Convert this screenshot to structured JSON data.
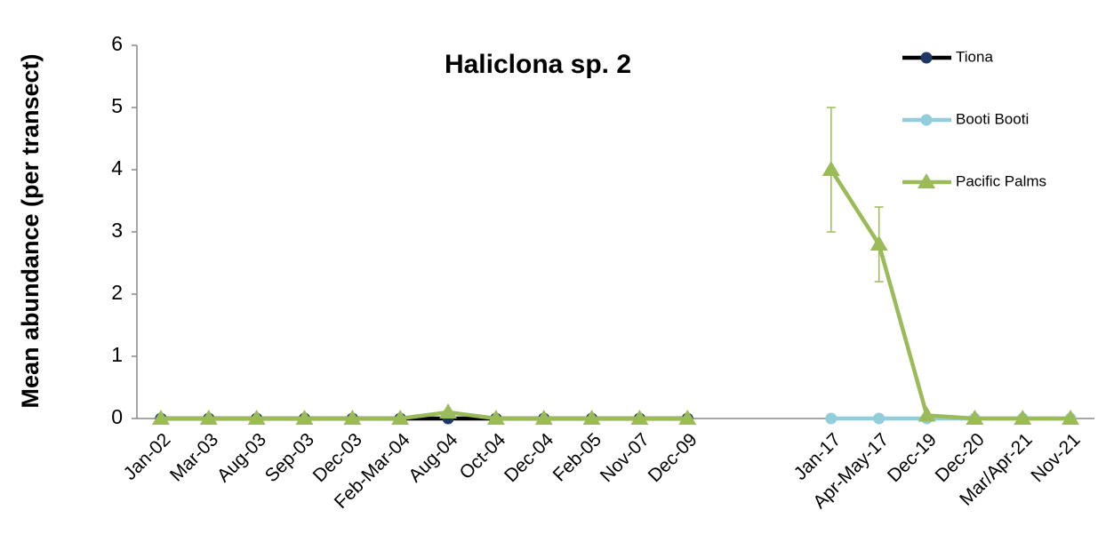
{
  "chart_data": {
    "type": "line",
    "title": "Haliclona sp. 2",
    "y_label": "Mean abundance (per transect)",
    "categories": [
      "Jan-02",
      "Mar-03",
      "Aug-03",
      "Sep-03",
      "Dec-03",
      "Feb-Mar-04",
      "Aug-04",
      "Oct-04",
      "Dec-04",
      "Feb-05",
      "Nov-07",
      "Dec-09",
      null,
      null,
      "Jan-17",
      "Apr-May-17",
      "Dec-19",
      "Dec-20",
      "Mar/Apr-21",
      "Nov-21"
    ],
    "series": [
      {
        "name": "Tiona",
        "color": "#000000",
        "marker_color": "#1f3864",
        "marker": "circle",
        "values": [
          0,
          0,
          0,
          0,
          0,
          0,
          0,
          0,
          0,
          0,
          0,
          0,
          null,
          null,
          null,
          null,
          null,
          null,
          null,
          null
        ]
      },
      {
        "name": "Booti Booti",
        "color": "#92cddc",
        "marker_color": "#92cddc",
        "marker": "circle",
        "values": [
          null,
          null,
          null,
          null,
          null,
          null,
          null,
          null,
          null,
          null,
          null,
          null,
          null,
          null,
          0,
          0,
          0,
          0,
          0,
          0
        ]
      },
      {
        "name": "Pacific Palms",
        "color": "#9bbb59",
        "marker_color": "#9bbb59",
        "marker": "triangle",
        "values": [
          0,
          0,
          0,
          0,
          0,
          0,
          0.1,
          0,
          0,
          0,
          0,
          0,
          null,
          null,
          4,
          2.8,
          0.05,
          0,
          0,
          0
        ],
        "errors": [
          null,
          null,
          null,
          null,
          null,
          null,
          null,
          null,
          null,
          null,
          null,
          null,
          null,
          null,
          1,
          0.6,
          null,
          null,
          null,
          null
        ]
      }
    ],
    "ylim": [
      0,
      6
    ],
    "yticks": [
      0,
      1,
      2,
      3,
      4,
      5,
      6
    ],
    "legend": "upper right",
    "grid": false
  }
}
